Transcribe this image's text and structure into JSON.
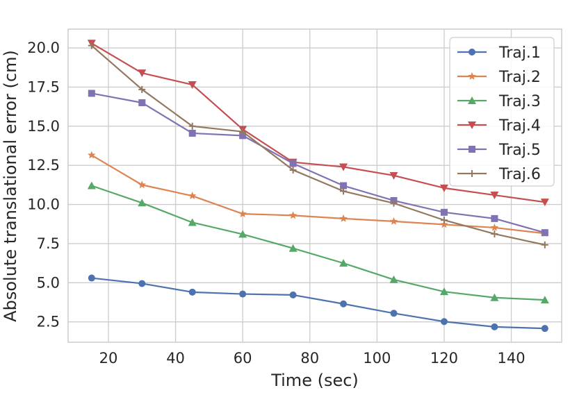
{
  "chart_data": {
    "type": "line",
    "title": "",
    "xlabel": "Time (sec)",
    "ylabel": "Absolute translational error (cm)",
    "xlim": [
      8,
      155
    ],
    "ylim": [
      1.2,
      21.2
    ],
    "xticks": [
      20,
      40,
      60,
      80,
      100,
      120,
      140
    ],
    "yticks": [
      2.5,
      5.0,
      7.5,
      10.0,
      12.5,
      15.0,
      17.5,
      20.0
    ],
    "xtick_labels": [
      "20",
      "40",
      "60",
      "80",
      "100",
      "120",
      "140"
    ],
    "ytick_labels": [
      "2.5",
      "5.0",
      "7.5",
      "10.0",
      "12.5",
      "15.0",
      "17.5",
      "20.0"
    ],
    "grid": true,
    "legend_position": "top-right",
    "x": [
      15,
      30,
      45,
      60,
      75,
      90,
      105,
      120,
      135,
      150
    ],
    "series": [
      {
        "name": "Traj.1",
        "color": "#4c72b0",
        "marker": "circle",
        "values": [
          5.3,
          4.95,
          4.4,
          4.28,
          4.22,
          3.65,
          3.05,
          2.52,
          2.18,
          2.08
        ]
      },
      {
        "name": "Traj.2",
        "color": "#dd8452",
        "marker": "star",
        "values": [
          13.15,
          11.25,
          10.55,
          9.4,
          9.3,
          9.1,
          8.92,
          8.72,
          8.52,
          8.15
        ]
      },
      {
        "name": "Traj.3",
        "color": "#55a868",
        "marker": "triangle-up",
        "values": [
          11.2,
          10.1,
          8.85,
          8.1,
          7.2,
          6.25,
          5.2,
          4.43,
          4.05,
          3.9
        ]
      },
      {
        "name": "Traj.4",
        "color": "#c44e52",
        "marker": "triangle-down",
        "values": [
          20.3,
          18.4,
          17.65,
          14.8,
          12.7,
          12.4,
          11.85,
          11.05,
          10.6,
          10.15
        ]
      },
      {
        "name": "Traj.5",
        "color": "#8172b3",
        "marker": "square",
        "values": [
          17.1,
          16.5,
          14.55,
          14.4,
          12.62,
          11.2,
          10.25,
          9.5,
          9.1,
          8.2
        ]
      },
      {
        "name": "Traj.6",
        "color": "#937860",
        "marker": "plus",
        "values": [
          20.15,
          17.35,
          15.0,
          14.65,
          12.2,
          10.85,
          10.08,
          9.0,
          8.12,
          7.42
        ]
      }
    ]
  }
}
